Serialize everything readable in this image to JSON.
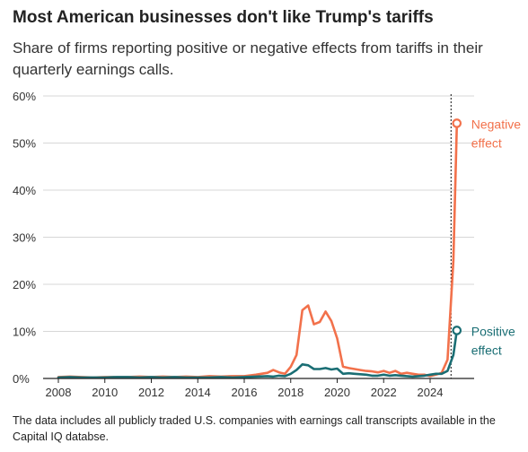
{
  "title": "Most American businesses don't like Trump's tariffs",
  "subtitle": "Share of firms reporting positive or negative effects from tariffs in their quarterly earnings calls.",
  "footnote": "The data includes all publicly traded U.S. companies with earnings call transcripts available in the Capital IQ databse.",
  "colors": {
    "negative": "#f2714b",
    "positive": "#1a6e74",
    "grid": "#d7d7d7",
    "axis": "#222222",
    "text": "#333333"
  },
  "chart_data": {
    "type": "line",
    "title": "Most American businesses don't like Trump's tariffs",
    "subtitle": "Share of firms reporting positive or negative effects from tariffs in their quarterly earnings calls.",
    "xlabel": "",
    "ylabel": "",
    "xlim": [
      2008,
      2025.4
    ],
    "ylim": [
      0,
      60
    ],
    "y_ticks": [
      0,
      10,
      20,
      30,
      40,
      50,
      60
    ],
    "y_tick_labels": [
      "0%",
      "10%",
      "20%",
      "30%",
      "40%",
      "50%",
      "60%"
    ],
    "x_ticks": [
      2008,
      2010,
      2012,
      2014,
      2016,
      2018,
      2020,
      2022,
      2024
    ],
    "x_tick_labels": [
      "2008",
      "2010",
      "2012",
      "2014",
      "2016",
      "2018",
      "2020",
      "2022",
      "2024"
    ],
    "grid": "horizontal",
    "reference_line_x": 2024.9,
    "series": [
      {
        "name": "Negative effect",
        "label_lines": [
          "Negative",
          "effect"
        ],
        "color": "#f2714b",
        "x": [
          2008,
          2008.5,
          2009,
          2009.5,
          2010,
          2010.5,
          2011,
          2011.5,
          2012,
          2012.5,
          2013,
          2013.5,
          2014,
          2014.5,
          2015,
          2015.5,
          2016,
          2016.5,
          2017,
          2017.25,
          2017.5,
          2017.75,
          2018,
          2018.25,
          2018.5,
          2018.75,
          2019,
          2019.25,
          2019.5,
          2019.75,
          2020,
          2020.25,
          2020.5,
          2020.75,
          2021,
          2021.25,
          2021.5,
          2021.75,
          2022,
          2022.25,
          2022.5,
          2022.75,
          2023,
          2023.25,
          2023.5,
          2023.75,
          2024,
          2024.25,
          2024.5,
          2024.75,
          2025,
          2025.15
        ],
        "values": [
          0.3,
          0.4,
          0.3,
          0.2,
          0.3,
          0.3,
          0.3,
          0.4,
          0.3,
          0.4,
          0.3,
          0.4,
          0.3,
          0.5,
          0.4,
          0.5,
          0.5,
          0.8,
          1.2,
          1.8,
          1.3,
          1.0,
          2.5,
          5.0,
          14.5,
          15.5,
          11.5,
          12.0,
          14.2,
          12.2,
          8.5,
          2.5,
          2.2,
          2.0,
          1.8,
          1.6,
          1.5,
          1.3,
          1.6,
          1.2,
          1.6,
          1.0,
          1.2,
          1.0,
          0.8,
          0.8,
          0.5,
          0.8,
          1.2,
          4.0,
          25,
          54.2
        ]
      },
      {
        "name": "Positive effect",
        "label_lines": [
          "Positive",
          "effect"
        ],
        "color": "#1a6e74",
        "x": [
          2008,
          2008.5,
          2009,
          2009.5,
          2010,
          2010.5,
          2011,
          2011.5,
          2012,
          2012.5,
          2013,
          2013.5,
          2014,
          2014.5,
          2015,
          2015.5,
          2016,
          2016.5,
          2017,
          2017.25,
          2017.5,
          2017.75,
          2018,
          2018.25,
          2018.5,
          2018.75,
          2019,
          2019.25,
          2019.5,
          2019.75,
          2020,
          2020.25,
          2020.5,
          2020.75,
          2021,
          2021.25,
          2021.5,
          2021.75,
          2022,
          2022.25,
          2022.5,
          2022.75,
          2023,
          2023.25,
          2023.5,
          2023.75,
          2024,
          2024.25,
          2024.5,
          2024.75,
          2025,
          2025.15
        ],
        "values": [
          0.2,
          0.3,
          0.2,
          0.2,
          0.2,
          0.3,
          0.3,
          0.2,
          0.3,
          0.2,
          0.3,
          0.2,
          0.2,
          0.2,
          0.3,
          0.2,
          0.3,
          0.4,
          0.5,
          0.4,
          0.6,
          0.5,
          1.0,
          1.8,
          3.0,
          2.8,
          2.0,
          2.0,
          2.2,
          1.9,
          2.1,
          1.0,
          1.1,
          1.0,
          0.9,
          0.8,
          0.6,
          0.6,
          0.8,
          0.6,
          0.7,
          0.6,
          0.5,
          0.4,
          0.5,
          0.6,
          0.8,
          1.0,
          1.0,
          1.6,
          5.0,
          10.2
        ]
      }
    ]
  }
}
